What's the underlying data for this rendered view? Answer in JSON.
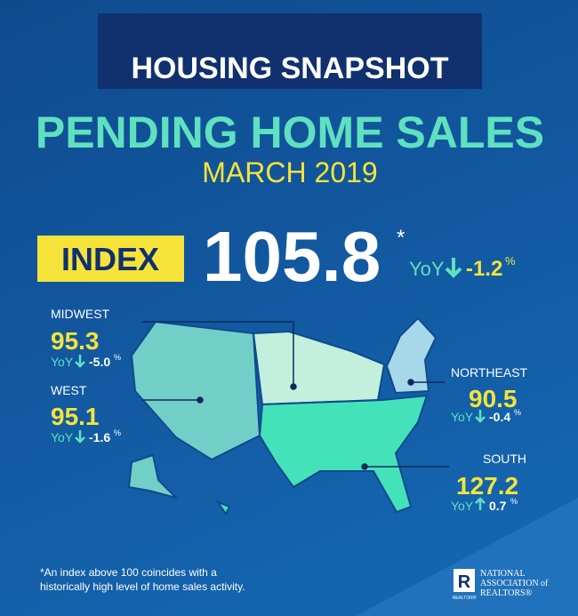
{
  "banner": "HOUSING SNAPSHOT",
  "title": "PENDING HOME SALES",
  "period": "MARCH 2019",
  "index": {
    "label": "INDEX",
    "value": "105.8",
    "asterisk": "*",
    "yoy_label": "YoY",
    "change": "-1.2",
    "unit": "%"
  },
  "regions": [
    {
      "name": "MIDWEST",
      "value": "95.3",
      "yoy_label": "YoY",
      "change": "-5.0",
      "unit": "%"
    },
    {
      "name": "WEST",
      "value": "95.1",
      "yoy_label": "YoY",
      "change": "-1.6",
      "unit": "%"
    },
    {
      "name": "NORTHEAST",
      "value": "90.5",
      "yoy_label": "YoY",
      "change": "-0.4",
      "unit": "%"
    },
    {
      "name": "SOUTH",
      "value": "127.2",
      "yoy_label": "YoY",
      "change": "0.7",
      "unit": "%"
    }
  ],
  "footnote": [
    "*An index above 100 coincides with a",
    "historically high level of home sales activity."
  ],
  "logo": {
    "mark": "R",
    "sub": "REALTOR®",
    "lines": [
      "NATIONAL",
      "ASSOCIATION of",
      "REALTORS®"
    ]
  }
}
